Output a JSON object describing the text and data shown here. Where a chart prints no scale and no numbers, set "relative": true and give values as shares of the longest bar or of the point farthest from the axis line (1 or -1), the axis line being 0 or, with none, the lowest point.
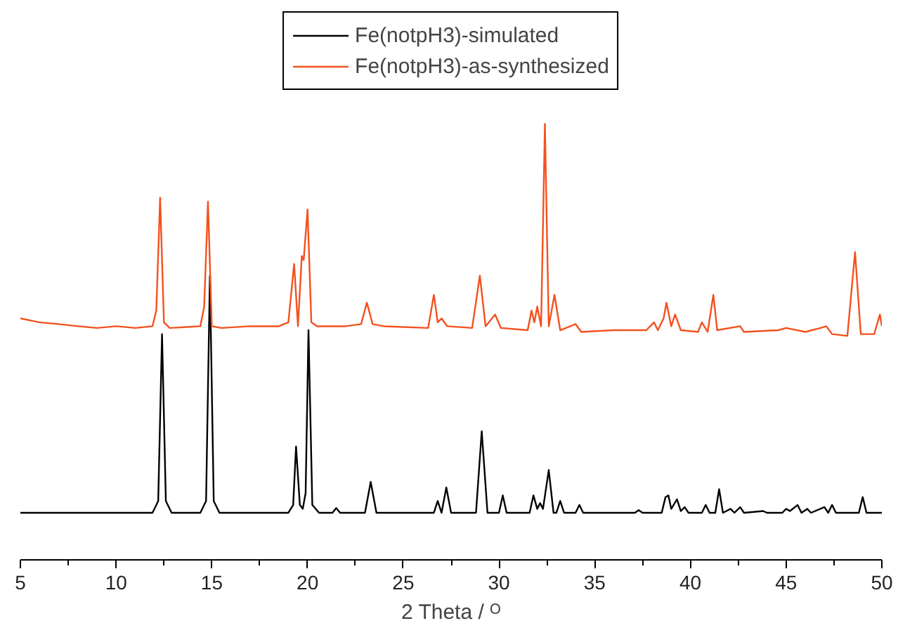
{
  "chart_data": {
    "type": "line",
    "xlabel": "2 Theta / ᴼ",
    "relative": true,
    "legend": "top",
    "grid": false,
    "marker": "none",
    "line_style": "solid",
    "xlim": [
      5,
      50
    ],
    "xticks": [
      5,
      {
        "value": 7.5,
        "label": null
      },
      10,
      {
        "value": 12.5,
        "label": null
      },
      15,
      {
        "value": 17.5,
        "label": null
      },
      20,
      {
        "value": 22.5,
        "label": null
      },
      25,
      {
        "value": 27.5,
        "label": null
      },
      30,
      {
        "value": 32.5,
        "label": null
      },
      35,
      {
        "value": 37.5,
        "label": null
      },
      40,
      {
        "value": 42.5,
        "label": null
      },
      45,
      {
        "value": 47.5,
        "label": null
      },
      50
    ],
    "series": [
      {
        "name": "Fe(notpH3)-simulated",
        "color": "#000000",
        "x": [
          5,
          11.9,
          12.2,
          12.4,
          12.6,
          12.9,
          14.4,
          14.7,
          14.9,
          15.1,
          15.4,
          19.0,
          19.25,
          19.4,
          19.6,
          19.75,
          19.9,
          20.05,
          20.25,
          20.6,
          21.3,
          21.5,
          21.7,
          23.0,
          23.3,
          23.6,
          26.6,
          26.8,
          27.0,
          27.25,
          27.5,
          28.8,
          29.1,
          29.4,
          30.0,
          30.2,
          30.4,
          31.6,
          31.8,
          32.0,
          32.15,
          32.3,
          32.6,
          32.85,
          33.0,
          33.2,
          33.4,
          34.0,
          34.2,
          34.4,
          37.1,
          37.3,
          37.5,
          38.5,
          38.7,
          38.85,
          39.0,
          39.3,
          39.5,
          39.7,
          39.9,
          40.6,
          40.8,
          41.0,
          41.3,
          41.5,
          41.7,
          42.1,
          42.3,
          42.6,
          42.8,
          43.8,
          44.0,
          44.8,
          45.0,
          45.2,
          45.6,
          45.8,
          46.1,
          46.3,
          47.0,
          47.2,
          47.4,
          47.6,
          48.8,
          49.0,
          49.2,
          50
        ],
        "values": [
          0.108,
          0.108,
          0.135,
          0.518,
          0.135,
          0.108,
          0.108,
          0.135,
          0.652,
          0.135,
          0.108,
          0.108,
          0.126,
          0.26,
          0.126,
          0.117,
          0.153,
          0.527,
          0.126,
          0.108,
          0.108,
          0.119,
          0.108,
          0.108,
          0.179,
          0.108,
          0.108,
          0.135,
          0.108,
          0.166,
          0.108,
          0.108,
          0.295,
          0.108,
          0.108,
          0.148,
          0.108,
          0.108,
          0.148,
          0.117,
          0.13,
          0.117,
          0.206,
          0.108,
          0.108,
          0.135,
          0.108,
          0.108,
          0.126,
          0.108,
          0.108,
          0.114,
          0.108,
          0.108,
          0.144,
          0.148,
          0.117,
          0.139,
          0.112,
          0.121,
          0.108,
          0.108,
          0.126,
          0.108,
          0.108,
          0.162,
          0.108,
          0.117,
          0.108,
          0.121,
          0.108,
          0.112,
          0.108,
          0.108,
          0.117,
          0.112,
          0.126,
          0.108,
          0.117,
          0.108,
          0.121,
          0.108,
          0.126,
          0.108,
          0.108,
          0.144,
          0.108,
          0.108
        ]
      },
      {
        "name": "Fe(notpH3)-as-synthesized",
        "color": "#f4511e",
        "x": [
          5,
          6,
          7,
          8,
          9,
          10,
          11,
          11.9,
          12.1,
          12.3,
          12.5,
          12.8,
          14.4,
          14.6,
          14.8,
          15.0,
          15.5,
          17,
          18.5,
          19.0,
          19.3,
          19.5,
          19.7,
          19.8,
          20.0,
          20.2,
          20.5,
          22,
          22.8,
          23.1,
          23.4,
          24,
          26.3,
          26.6,
          26.8,
          27.0,
          27.3,
          28.6,
          29.0,
          29.3,
          29.8,
          30.1,
          31.5,
          31.7,
          31.85,
          32.0,
          32.2,
          32.4,
          32.6,
          32.9,
          33.2,
          34.0,
          34.3,
          36,
          37.7,
          38.1,
          38.3,
          38.6,
          38.75,
          39.0,
          39.2,
          39.5,
          40.4,
          40.6,
          40.9,
          41.2,
          41.4,
          42.6,
          42.8,
          44.6,
          45,
          46,
          46.8,
          47.1,
          47.4,
          48.2,
          48.6,
          48.9,
          49.6,
          49.9,
          50
        ],
        "values": [
          0.554,
          0.545,
          0.541,
          0.536,
          0.532,
          0.536,
          0.532,
          0.536,
          0.572,
          0.831,
          0.545,
          0.532,
          0.536,
          0.581,
          0.822,
          0.536,
          0.532,
          0.536,
          0.536,
          0.545,
          0.679,
          0.536,
          0.697,
          0.688,
          0.804,
          0.545,
          0.536,
          0.536,
          0.541,
          0.59,
          0.541,
          0.536,
          0.532,
          0.608,
          0.545,
          0.554,
          0.536,
          0.532,
          0.652,
          0.536,
          0.563,
          0.532,
          0.527,
          0.572,
          0.545,
          0.581,
          0.536,
          1.0,
          0.536,
          0.608,
          0.527,
          0.541,
          0.523,
          0.527,
          0.527,
          0.545,
          0.527,
          0.554,
          0.59,
          0.536,
          0.563,
          0.527,
          0.523,
          0.545,
          0.523,
          0.608,
          0.527,
          0.536,
          0.523,
          0.527,
          0.532,
          0.523,
          0.532,
          0.536,
          0.518,
          0.514,
          0.706,
          0.518,
          0.518,
          0.563,
          0.536
        ]
      }
    ]
  }
}
